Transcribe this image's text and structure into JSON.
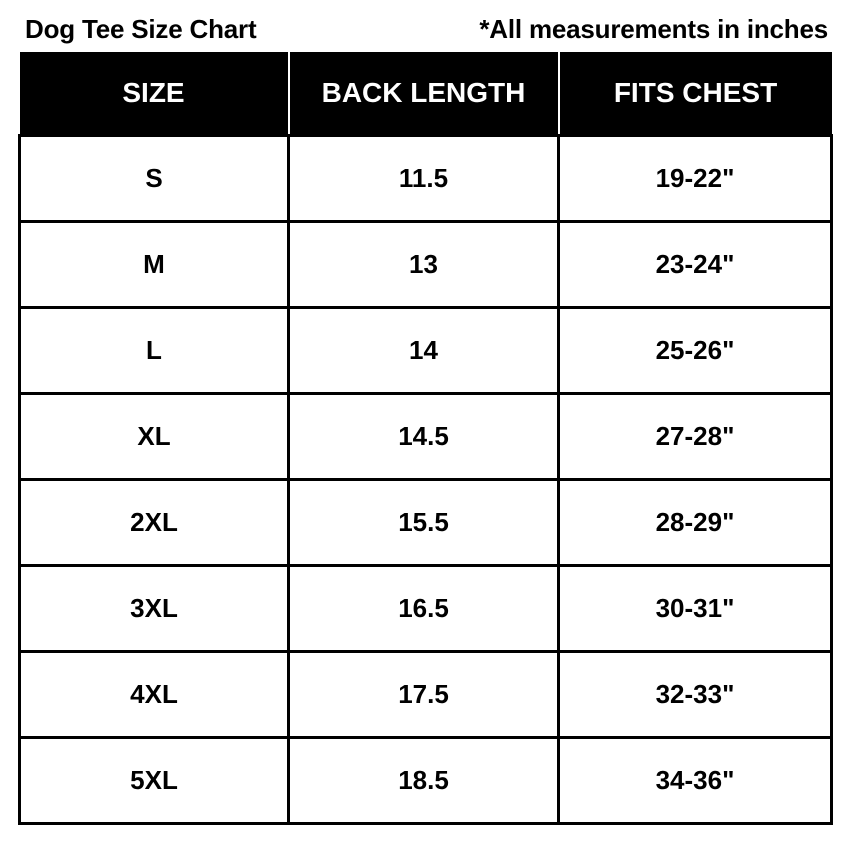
{
  "title": "Dog Tee Size Chart",
  "note": "*All measurements in inches",
  "table": {
    "headers": [
      "SIZE",
      "BACK LENGTH",
      "FITS CHEST"
    ],
    "rows": [
      [
        "S",
        "11.5",
        "19-22\""
      ],
      [
        "M",
        "13",
        "23-24\""
      ],
      [
        "L",
        "14",
        "25-26\""
      ],
      [
        "XL",
        "14.5",
        "27-28\""
      ],
      [
        "2XL",
        "15.5",
        "28-29\""
      ],
      [
        "3XL",
        "16.5",
        "30-31\""
      ],
      [
        "4XL",
        "17.5",
        "32-33\""
      ],
      [
        "5XL",
        "18.5",
        "34-36\""
      ]
    ]
  }
}
